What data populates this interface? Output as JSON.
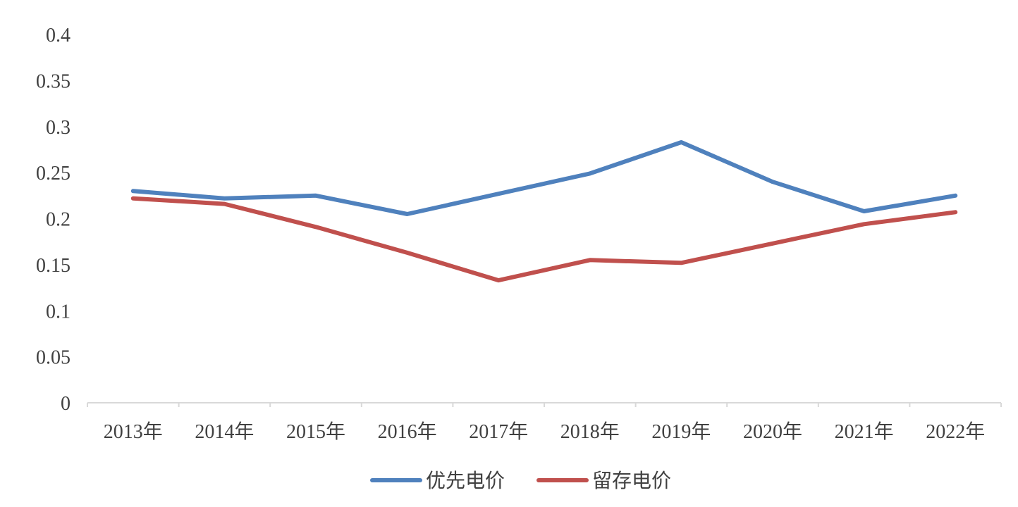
{
  "chart_data": {
    "type": "line",
    "title": "",
    "xlabel": "",
    "ylabel": "",
    "categories": [
      "2013年",
      "2014年",
      "2015年",
      "2016年",
      "2017年",
      "2018年",
      "2019年",
      "2020年",
      "2021年",
      "2022年"
    ],
    "y_ticks": [
      "0",
      "0.05",
      "0.1",
      "0.15",
      "0.2",
      "0.25",
      "0.3",
      "0.35",
      "0.4"
    ],
    "ylim": [
      0,
      0.4
    ],
    "grid": false,
    "legend_position": "bottom",
    "series": [
      {
        "name": "优先电价",
        "color": "#4F81BD",
        "values": [
          0.23,
          0.222,
          0.225,
          0.205,
          0.227,
          0.249,
          0.283,
          0.24,
          0.208,
          0.225
        ]
      },
      {
        "name": "留存电价",
        "color": "#C0504D",
        "values": [
          0.222,
          0.216,
          0.191,
          0.163,
          0.133,
          0.155,
          0.152,
          0.173,
          0.194,
          0.207
        ]
      }
    ]
  }
}
